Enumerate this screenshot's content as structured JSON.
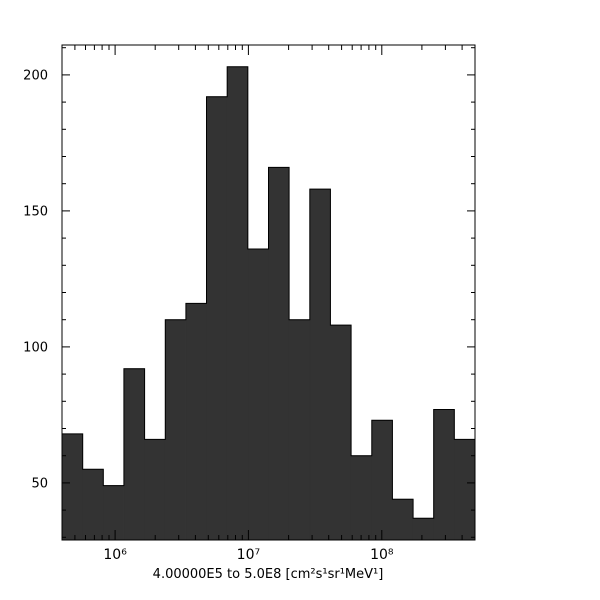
{
  "window": {
    "background_color": "#ffffff"
  },
  "chart_data": {
    "type": "bar",
    "subtype": "histogram",
    "title": "",
    "xlabel": "4.00000E5 to 5.0E8 [cm²s¹sr¹MeV¹]",
    "ylabel": "",
    "x_scale": "log",
    "y_scale": "linear",
    "xlim": [
      400000,
      500000000
    ],
    "ylim": [
      29,
      211
    ],
    "bins": 20,
    "bin_edges_log_spaced": true,
    "values": [
      68,
      55,
      49,
      92,
      66,
      110,
      116,
      192,
      203,
      136,
      166,
      110,
      158,
      108,
      60,
      73,
      44,
      37,
      77,
      66
    ],
    "x_major_ticks": [
      {
        "value": 1000000,
        "label": "10⁶"
      },
      {
        "value": 10000000,
        "label": "10⁷"
      },
      {
        "value": 100000000,
        "label": "10⁸"
      }
    ],
    "y_major_ticks": [
      {
        "value": 50,
        "label": "50"
      },
      {
        "value": 100,
        "label": "100"
      },
      {
        "value": 150,
        "label": "150"
      },
      {
        "value": 200,
        "label": "200"
      }
    ],
    "y_minor_step": 10,
    "grid": false,
    "legend": false,
    "bar_color": "#333333",
    "bar_edge_color": "#000000",
    "axis_color": "#000000"
  }
}
